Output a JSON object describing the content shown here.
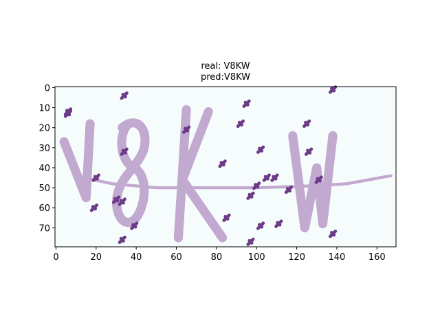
{
  "chart_data": {
    "type": "image",
    "title_lines": [
      "real: V8KW",
      "pred:V8KW"
    ],
    "xlim": [
      -0.5,
      169.5
    ],
    "ylim": [
      79.5,
      -0.5
    ],
    "xticks": [
      0,
      20,
      40,
      60,
      80,
      100,
      120,
      140,
      160
    ],
    "yticks": [
      0,
      10,
      20,
      30,
      40,
      50,
      60,
      70
    ]
  }
}
